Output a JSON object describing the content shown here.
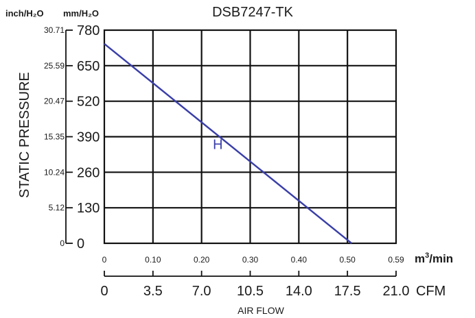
{
  "chart_data": {
    "type": "line",
    "title": "DSB7247-TK",
    "ylabel": "STATIC PRESSURE",
    "xlabel": "AIR FLOW",
    "y_units_left": "inch/H₂O",
    "y_units_right": "mm/H₂O",
    "x_unit_primary": "m³/min",
    "x_unit_secondary": "CFM",
    "xlim": [
      0,
      0.59
    ],
    "ylim": [
      0,
      780
    ],
    "x_ticks_m3min": [
      "0",
      "0.10",
      "0.20",
      "0.30",
      "0.40",
      "0.50",
      "0.59"
    ],
    "x_ticks_cfm": [
      "0",
      "3.5",
      "7.0",
      "10.5",
      "14.0",
      "17.5",
      "21.0"
    ],
    "y_ticks_mm": [
      "0",
      "130",
      "260",
      "390",
      "520",
      "650",
      "780"
    ],
    "y_ticks_inch": [
      "0",
      "5.12",
      "10.24",
      "15.35",
      "20.47",
      "25.59",
      "30.71"
    ],
    "grid": true,
    "series": [
      {
        "name": "H",
        "color": "#3a3fa8",
        "x": [
          0,
          0.5
        ],
        "y": [
          730,
          0
        ]
      }
    ]
  }
}
